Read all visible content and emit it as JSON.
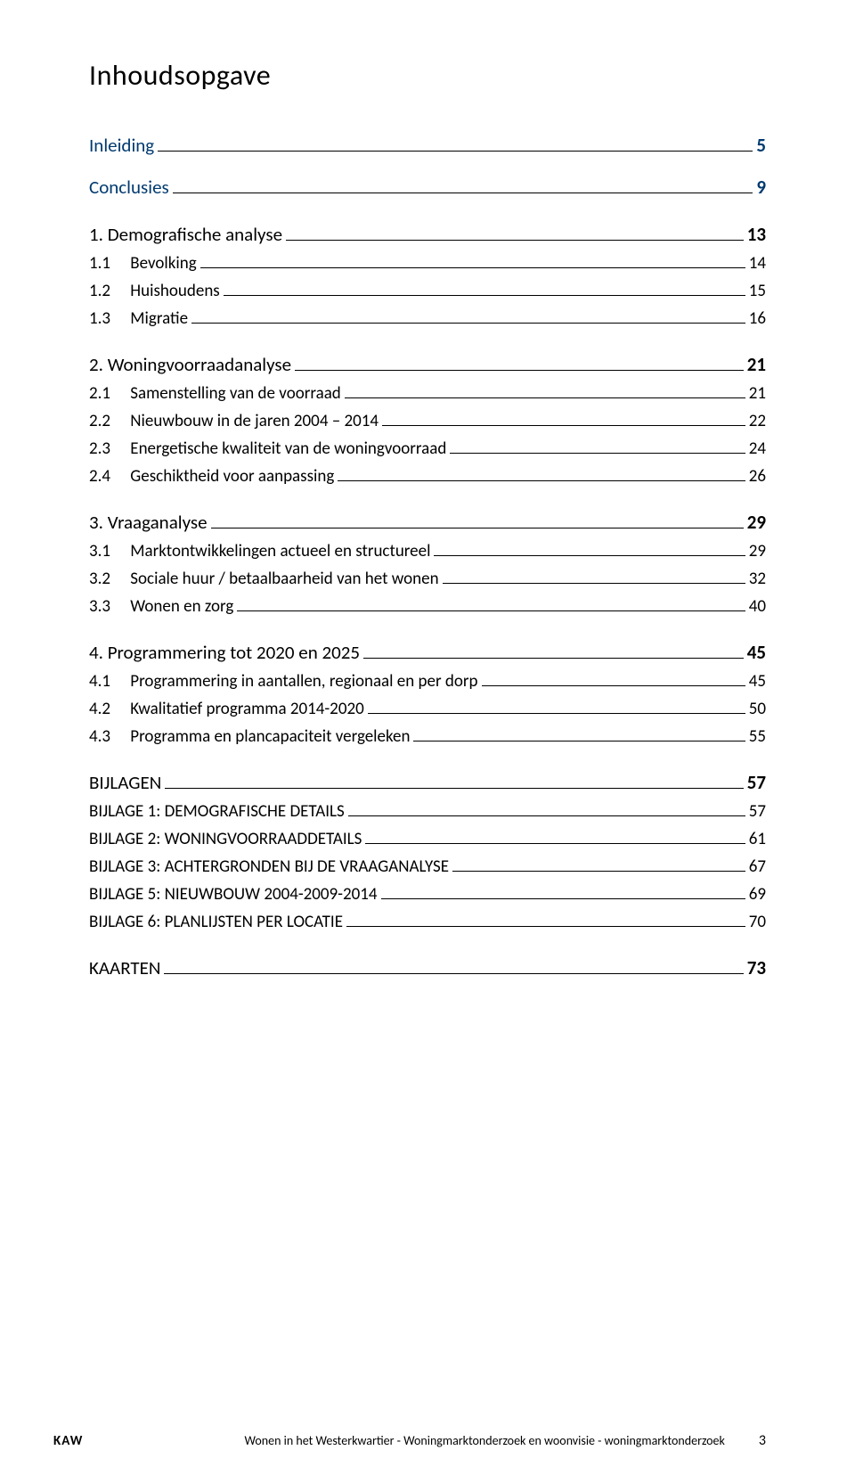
{
  "page": {
    "title": "Inhoudsopgave"
  },
  "colors": {
    "accent": "#003a6f",
    "text": "#000000",
    "background": "#ffffff",
    "leader": "#000000"
  },
  "typography": {
    "title_fontsize": 32,
    "top_fontsize": 21,
    "sub_fontsize": 19,
    "footer_fontsize": 14,
    "font_family": "Gill Sans"
  },
  "toc": [
    {
      "level": "top",
      "label": "Inleiding",
      "page": "5"
    },
    {
      "level": "top",
      "label": "Conclusies",
      "page": "9"
    },
    {
      "level": "sec",
      "num": "1.",
      "label": "Demografische analyse",
      "page": "13"
    },
    {
      "level": "sub",
      "num": "1.1",
      "label": "Bevolking",
      "page": "14"
    },
    {
      "level": "sub",
      "num": "1.2",
      "label": "Huishoudens",
      "page": "15"
    },
    {
      "level": "sub",
      "num": "1.3",
      "label": "Migratie",
      "page": "16"
    },
    {
      "level": "sec",
      "num": "2.",
      "label": "Woningvoorraadanalyse",
      "page": "21"
    },
    {
      "level": "sub",
      "num": "2.1",
      "label": "Samenstelling van de voorraad",
      "page": "21"
    },
    {
      "level": "sub",
      "num": "2.2",
      "label": "Nieuwbouw in de jaren 2004 – 2014",
      "page": "22"
    },
    {
      "level": "sub",
      "num": "2.3",
      "label": "Energetische kwaliteit van de woningvoorraad",
      "page": "24"
    },
    {
      "level": "sub",
      "num": "2.4",
      "label": "Geschiktheid voor aanpassing",
      "page": "26"
    },
    {
      "level": "sec",
      "num": "3.",
      "label": "Vraaganalyse",
      "page": "29"
    },
    {
      "level": "sub",
      "num": "3.1",
      "label": "Marktontwikkelingen actueel en structureel",
      "page": "29"
    },
    {
      "level": "sub",
      "num": "3.2",
      "label": "Sociale huur / betaalbaarheid van het wonen",
      "page": "32"
    },
    {
      "level": "sub",
      "num": "3.3",
      "label": "Wonen en zorg",
      "page": "40"
    },
    {
      "level": "sec",
      "num": "4.",
      "label": "Programmering tot 2020 en 2025",
      "page": "45"
    },
    {
      "level": "sub",
      "num": "4.1",
      "label": "Programmering in aantallen, regionaal en per dorp",
      "page": "45"
    },
    {
      "level": "sub",
      "num": "4.2",
      "label": "Kwalitatief programma 2014-2020",
      "page": "50"
    },
    {
      "level": "sub",
      "num": "4.3",
      "label": "Programma en plancapaciteit vergeleken",
      "page": "55"
    },
    {
      "level": "app-head",
      "label": "BIJLAGEN",
      "page": "57"
    },
    {
      "level": "app",
      "label": "BIJLAGE 1: DEMOGRAFISCHE DETAILS",
      "page": "57"
    },
    {
      "level": "app",
      "label": "BIJLAGE 2: WONINGVOORRAADDETAILS",
      "page": "61"
    },
    {
      "level": "app",
      "label": "BIJLAGE 3: ACHTERGRONDEN BIJ DE VRAAGANALYSE",
      "page": "67"
    },
    {
      "level": "app",
      "label": "BIJLAGE 5: NIEUWBOUW 2004-2009-2014",
      "page": "69"
    },
    {
      "level": "app",
      "label": "BIJLAGE 6: PLANLIJSTEN PER LOCATIE",
      "page": "70"
    },
    {
      "level": "kaarten",
      "label": "KAARTEN",
      "page": "73"
    }
  ],
  "footer": {
    "brand": "KAW",
    "doc_title": "Wonen in het Westerkwartier - Woningmarktonderzoek en woonvisie - woningmarktonderzoek",
    "page_number": "3"
  }
}
